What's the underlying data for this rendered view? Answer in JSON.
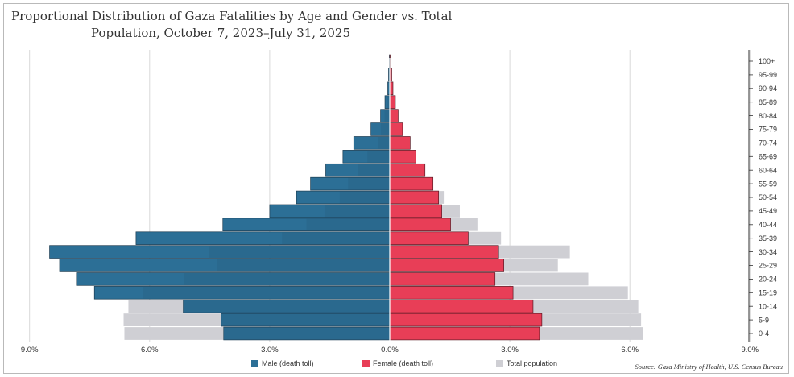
{
  "chart_data": {
    "type": "bar",
    "title": "Proportional Distribution of Gaza Fatalities by Age and Gender vs. Total Population, October 7, 2023–July 31, 2025",
    "title_lines": [
      "Proportional Distribution of Gaza Fatalities by Age and Gender vs. Total",
      "Population, October 7, 2023–July 31, 2025"
    ],
    "categories": [
      "100+",
      "95-99",
      "90-94",
      "85-89",
      "80-84",
      "75-79",
      "70-74",
      "65-69",
      "60-64",
      "55-59",
      "50-54",
      "45-49",
      "40-44",
      "35-39",
      "30-34",
      "25-29",
      "20-24",
      "15-19",
      "10-14",
      "5-9",
      "0-4"
    ],
    "series": [
      {
        "name": "Male (death toll)",
        "color": "#2c6f96",
        "values": [
          0.01,
          0.03,
          0.05,
          0.12,
          0.23,
          0.47,
          0.9,
          1.17,
          1.6,
          1.98,
          2.33,
          3.0,
          4.17,
          6.34,
          8.5,
          8.25,
          7.83,
          7.38,
          5.16,
          4.21,
          4.15
        ]
      },
      {
        "name": "Female (death toll)",
        "color": "#e83e57",
        "values": [
          0.01,
          0.05,
          0.08,
          0.14,
          0.21,
          0.32,
          0.51,
          0.65,
          0.88,
          1.08,
          1.22,
          1.3,
          1.52,
          1.96,
          2.72,
          2.85,
          2.63,
          3.08,
          3.58,
          3.8,
          3.74
        ]
      },
      {
        "name": "Total population",
        "color": "#cfcfd4",
        "male": [
          0.01,
          0.02,
          0.04,
          0.08,
          0.13,
          0.22,
          0.3,
          0.56,
          0.8,
          1.04,
          1.25,
          1.63,
          2.08,
          2.69,
          4.51,
          4.32,
          5.14,
          6.16,
          6.53,
          6.65,
          6.63
        ],
        "female": [
          0.01,
          0.02,
          0.05,
          0.09,
          0.15,
          0.25,
          0.4,
          0.52,
          0.71,
          0.93,
          1.35,
          1.75,
          2.19,
          2.78,
          4.5,
          4.2,
          4.96,
          5.95,
          6.21,
          6.28,
          6.32
        ]
      }
    ],
    "x_ticks": [
      "9.0%",
      "6.0%",
      "3.0%",
      "0.0%",
      "3.0%",
      "6.0%",
      "9.0%"
    ],
    "xlim": [
      -9,
      9
    ],
    "grid": true,
    "legend_position": "bottom"
  },
  "source": "Source: Gaza Ministry of Health, U.S. Census Bureau",
  "colors": {
    "male": "#2c6f96",
    "female": "#e83e57",
    "population": "#cfcfd4",
    "grid": "#d9d9d9"
  }
}
